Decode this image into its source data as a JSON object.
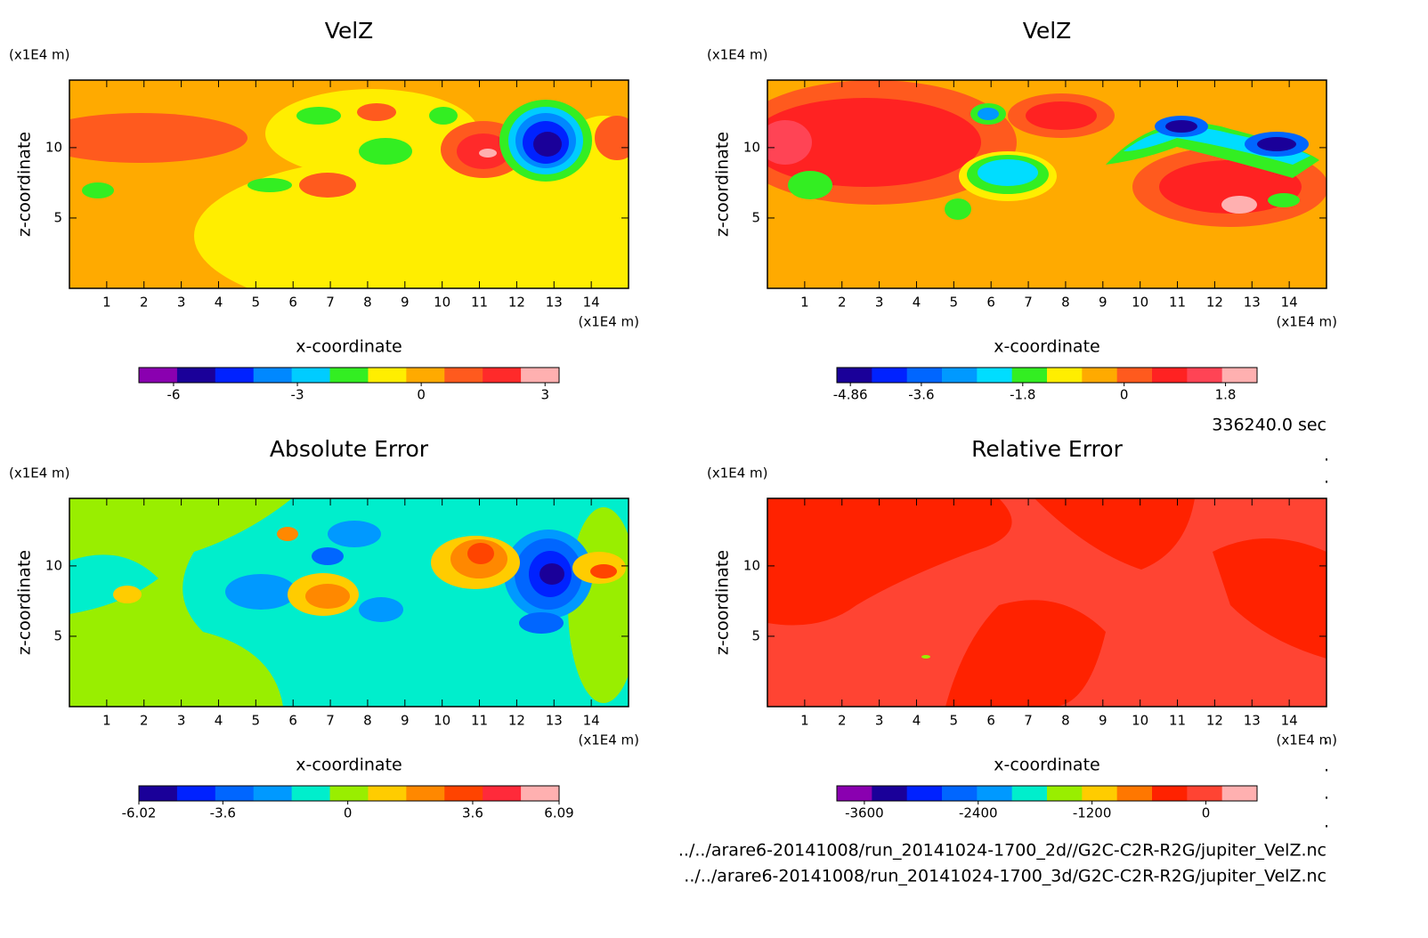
{
  "time_label": "336240.0 sec",
  "files": [
    "../../arare6-20141008/run_20141024-1700_2d//G2C-C2R-R2G/jupiter_VelZ.nc",
    "../../arare6-20141008/run_20141024-1700_3d/G2C-C2R-R2G/jupiter_VelZ.nc"
  ],
  "chart_data": [
    {
      "type": "contour",
      "title": "VelZ",
      "xlabel": "x-coordinate",
      "ylabel": "z-coordinate",
      "x_unit": "(x1E4 m)",
      "y_unit": "(x1E4 m)",
      "xlim": [
        0,
        15
      ],
      "ylim": [
        0,
        14.8
      ],
      "xticks": [
        1,
        2,
        3,
        4,
        5,
        6,
        7,
        8,
        9,
        10,
        11,
        12,
        13,
        14
      ],
      "yticks": [
        5,
        10
      ],
      "colorbar": {
        "clim": [
          -6.84,
          3.34
        ],
        "ticks": [
          -6,
          -3,
          0,
          3
        ],
        "colors": [
          "#8a00b0",
          "#1a0099",
          "#0022ff",
          "#0088ff",
          "#00ccff",
          "#33ee22",
          "#ffee00",
          "#ffaa00",
          "#ff5a1e",
          "#ff2a2a",
          "#ffb0b0"
        ]
      }
    },
    {
      "type": "contour",
      "title": "VelZ",
      "xlabel": "x-coordinate",
      "ylabel": "z-coordinate",
      "x_unit": "(x1E4 m)",
      "y_unit": "(x1E4 m)",
      "xlim": [
        0,
        15
      ],
      "ylim": [
        0,
        14.8
      ],
      "xticks": [
        1,
        2,
        3,
        4,
        5,
        6,
        7,
        8,
        9,
        10,
        11,
        12,
        13,
        14
      ],
      "yticks": [
        5,
        10
      ],
      "colorbar": {
        "clim": [
          -5.1,
          2.36
        ],
        "ticks": [
          -4.86,
          -3.6,
          -1.8,
          0,
          1.8
        ],
        "colors": [
          "#1a0099",
          "#0022ff",
          "#0066ff",
          "#0099ff",
          "#00ddff",
          "#33ee22",
          "#ffee00",
          "#ffaa00",
          "#ff5a1e",
          "#ff2222",
          "#ff4455",
          "#ffb0b0"
        ]
      }
    },
    {
      "type": "contour",
      "title": "Absolute Error",
      "xlabel": "x-coordinate",
      "ylabel": "z-coordinate",
      "x_unit": "(x1E4 m)",
      "y_unit": "(x1E4 m)",
      "xlim": [
        0,
        15
      ],
      "ylim": [
        0,
        14.8
      ],
      "xticks": [
        1,
        2,
        3,
        4,
        5,
        6,
        7,
        8,
        9,
        10,
        11,
        12,
        13,
        14
      ],
      "yticks": [
        5,
        10
      ],
      "colorbar": {
        "clim": [
          -6.02,
          6.09
        ],
        "ticks": [
          -6.02,
          -3.6,
          0,
          3.6,
          6.09
        ],
        "colors": [
          "#1a0099",
          "#0022ff",
          "#0066ff",
          "#0099ff",
          "#00eecc",
          "#99ee00",
          "#ffcc00",
          "#ff8800",
          "#ff4400",
          "#ff2a3a",
          "#ffb0b0"
        ]
      }
    },
    {
      "type": "contour",
      "title": "Relative Error",
      "xlabel": "x-coordinate",
      "ylabel": "z-coordinate",
      "x_unit": "(x1E4 m)",
      "y_unit": "(x1E4 m)",
      "xlim": [
        0,
        15
      ],
      "ylim": [
        0,
        14.8
      ],
      "xticks": [
        1,
        2,
        3,
        4,
        5,
        6,
        7,
        8,
        9,
        10,
        11,
        12,
        13,
        14
      ],
      "yticks": [
        5,
        10
      ],
      "colorbar": {
        "clim": [
          -3890,
          540
        ],
        "ticks": [
          -3600,
          -2400,
          -1200,
          0
        ],
        "colors": [
          "#8a00b0",
          "#1a0099",
          "#0022ff",
          "#0066ff",
          "#0099ff",
          "#00eecc",
          "#99ee00",
          "#ffcc00",
          "#ff7700",
          "#ff2200",
          "#ff4433",
          "#ffb0b0"
        ]
      }
    }
  ]
}
